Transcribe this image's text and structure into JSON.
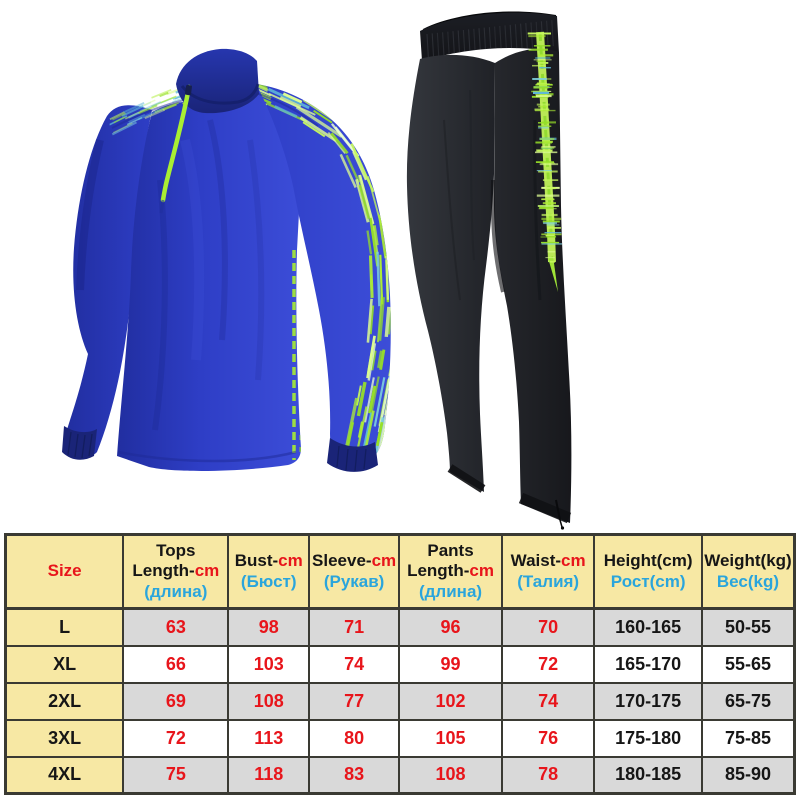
{
  "product": {
    "type": "tracksuit-set",
    "jacket": {
      "base_color": "#2e3ec6",
      "shade_color": "#212ea0",
      "light_color": "#3c4dd8",
      "navy_trim": "#1a2478",
      "zipper_color": "#a9ee33"
    },
    "pants": {
      "base_color": "#26282d",
      "dark_color": "#131418",
      "light_color": "#34373d"
    },
    "accent_greens": [
      "#aeee35",
      "#c6f75e",
      "#97e028",
      "#ddfc92"
    ],
    "accent_cyans": [
      "#7fd0dd",
      "#5fb8d8"
    ]
  },
  "size_chart": {
    "border_color": "#3a3a33",
    "header_bg": "#f7e8a4",
    "row_gray": "#d9d9d9",
    "row_white": "#ffffff",
    "text_colors": {
      "red": "#e8151b",
      "cyan": "#2aa5dc",
      "black": "#161616"
    },
    "columns": [
      {
        "id": "size",
        "width_pct": 14.9,
        "lines": [
          [
            {
              "t": "Size",
              "c": "red"
            }
          ]
        ]
      },
      {
        "id": "tops-length",
        "width_pct": 13.3,
        "lines": [
          [
            {
              "t": "Tops",
              "c": "black"
            }
          ],
          [
            {
              "t": "Length-",
              "c": "black"
            },
            {
              "t": "cm",
              "c": "red"
            }
          ],
          [
            {
              "t": "(длина)",
              "c": "cyan"
            }
          ]
        ]
      },
      {
        "id": "bust",
        "width_pct": 10.2,
        "lines": [
          [
            {
              "t": "Bust-",
              "c": "black"
            },
            {
              "t": "cm",
              "c": "red"
            }
          ],
          [
            {
              "t": "(Бюст)",
              "c": "cyan"
            }
          ]
        ]
      },
      {
        "id": "sleeve",
        "width_pct": 11.4,
        "lines": [
          [
            {
              "t": "Sleeve-",
              "c": "black"
            },
            {
              "t": "cm",
              "c": "red"
            }
          ],
          [
            {
              "t": "(Рукав)",
              "c": "cyan"
            }
          ]
        ]
      },
      {
        "id": "pants-length",
        "width_pct": 13.0,
        "lines": [
          [
            {
              "t": "Pants",
              "c": "black"
            }
          ],
          [
            {
              "t": "Length-",
              "c": "black"
            },
            {
              "t": "cm",
              "c": "red"
            }
          ],
          [
            {
              "t": "(длина)",
              "c": "cyan"
            }
          ]
        ]
      },
      {
        "id": "waist",
        "width_pct": 11.7,
        "lines": [
          [
            {
              "t": "Waist-",
              "c": "black"
            },
            {
              "t": "cm",
              "c": "red"
            }
          ],
          [
            {
              "t": "(Талия)",
              "c": "cyan"
            }
          ]
        ]
      },
      {
        "id": "height",
        "width_pct": 13.6,
        "lines": [
          [
            {
              "t": "Height(cm)",
              "c": "black"
            }
          ],
          [
            {
              "t": "Рост(cm)",
              "c": "cyan"
            }
          ]
        ]
      },
      {
        "id": "weight",
        "width_pct": 11.7,
        "lines": [
          [
            {
              "t": "Weight(kg)",
              "c": "black"
            }
          ],
          [
            {
              "t": "Вес(kg)",
              "c": "cyan"
            }
          ]
        ]
      }
    ],
    "value_colors": [
      "red",
      "red",
      "red",
      "red",
      "red",
      "black",
      "black"
    ],
    "rows": [
      {
        "size": "L",
        "values": [
          "63",
          "98",
          "71",
          "96",
          "70",
          "160-165",
          "50-55"
        ],
        "shaded": true
      },
      {
        "size": "XL",
        "values": [
          "66",
          "103",
          "74",
          "99",
          "72",
          "165-170",
          "55-65"
        ],
        "shaded": false
      },
      {
        "size": "2XL",
        "values": [
          "69",
          "108",
          "77",
          "102",
          "74",
          "170-175",
          "65-75"
        ],
        "shaded": true
      },
      {
        "size": "3XL",
        "values": [
          "72",
          "113",
          "80",
          "105",
          "76",
          "175-180",
          "75-85"
        ],
        "shaded": false
      },
      {
        "size": "4XL",
        "values": [
          "75",
          "118",
          "83",
          "108",
          "78",
          "180-185",
          "85-90"
        ],
        "shaded": true
      }
    ]
  }
}
